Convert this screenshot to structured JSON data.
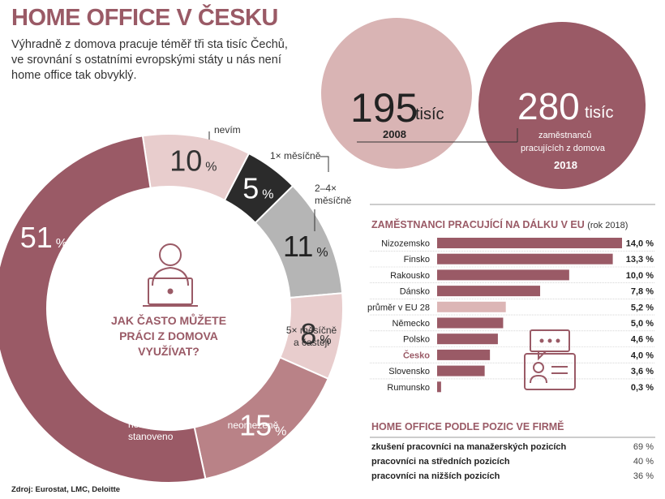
{
  "title": "HOME OFFICE V ČESKU",
  "subtitle": "Výhradně z domova pracuje téměř tři sta tisíc Čechů, ve srovnání s ostatními evropskými státy u nás není home office tak obvyklý.",
  "colors": {
    "brand": "#9a5a66",
    "pink_light": "#e8cdcd",
    "dark": "#2b2b2b",
    "grey": "#b5b5b5",
    "mid_pink": "#b98287",
    "light_bar": "#dcb6b6"
  },
  "bubbles": {
    "y2008": {
      "value": "195",
      "unit": "tisíc",
      "year": "2008"
    },
    "y2018": {
      "value": "280",
      "unit": "tisíc",
      "desc_line1": "zaměstnanců",
      "desc_line2": "pracujících z domova",
      "year": "2018"
    }
  },
  "center_question": [
    "JAK ČASTO MŮŽETE",
    "PRÁCI Z DOMOVA",
    "VYUŽÍVAT?"
  ],
  "donut_units": {
    "percent_sign": "%"
  },
  "eu_section": {
    "title": "ZAMĚSTNANCI PRACUJÍCÍ NA DÁLKU V EU",
    "note": "(rok 2018)"
  },
  "positions_section": {
    "title": "HOME OFFICE PODLE POZIC VE FIRMĚ",
    "rows": [
      {
        "label": "zkušení pracovníci na manažerských pozicích",
        "value": "69 %"
      },
      {
        "label": "pracovníci na středních pozicích",
        "value": "40 %"
      },
      {
        "label": "pracovníci na nižších pozicích",
        "value": "36 %"
      }
    ]
  },
  "source": "Zdroj: Eurostat, LMC, Deloitte",
  "chart_data": [
    {
      "type": "pie",
      "title": "JAK ČASTO MŮŽETE PRÁCI Z DOMOVA VYUŽÍVAT?",
      "slices": [
        {
          "value": 10,
          "label_lines": [
            "nevím"
          ],
          "color": "#e8cdcd"
        },
        {
          "value": 5,
          "label_lines": [
            "1× měsíčně"
          ],
          "color": "#2b2b2b"
        },
        {
          "value": 11,
          "label_lines": [
            "2–4×",
            "měsíčně"
          ],
          "color": "#b5b5b5"
        },
        {
          "value": 8,
          "label_lines": [
            "5× měsíčně",
            "a častěji"
          ],
          "color": "#e8cdcd"
        },
        {
          "value": 15,
          "label_lines": [
            "neomezeně"
          ],
          "color": "#b98287"
        },
        {
          "value": 51,
          "label_lines": [
            "není pevně",
            "stanoveno"
          ],
          "color": "#9a5a66"
        }
      ]
    },
    {
      "type": "bar",
      "orientation": "horizontal",
      "title": "ZAMĚSTNANCI PRACUJÍCÍ NA DÁLKU V EU",
      "categories": [
        "Nizozemsko",
        "Finsko",
        "Rakousko",
        "Dánsko",
        "průměr v EU 28",
        "Německo",
        "Polsko",
        "Česko",
        "Slovensko",
        "Rumunsko"
      ],
      "values": [
        14.0,
        13.3,
        10.0,
        7.8,
        5.2,
        5.0,
        4.6,
        4.0,
        3.6,
        0.3
      ],
      "value_labels": [
        "14,0 %",
        "13,3 %",
        "10,0 %",
        "7,8 %",
        "5,2 %",
        "5,0 %",
        "4,6 %",
        "4,0 %",
        "3,6 %",
        "0,3 %"
      ],
      "highlight": {
        "průměr v EU 28": "#dcb6b6",
        "Česko": "#9a5a66"
      },
      "xlim": [
        0,
        14
      ]
    },
    {
      "type": "bar",
      "title": "Zaměstnanci pracující z domova",
      "categories": [
        "2008",
        "2018"
      ],
      "values": [
        195,
        280
      ],
      "unit": "tisíc"
    }
  ]
}
